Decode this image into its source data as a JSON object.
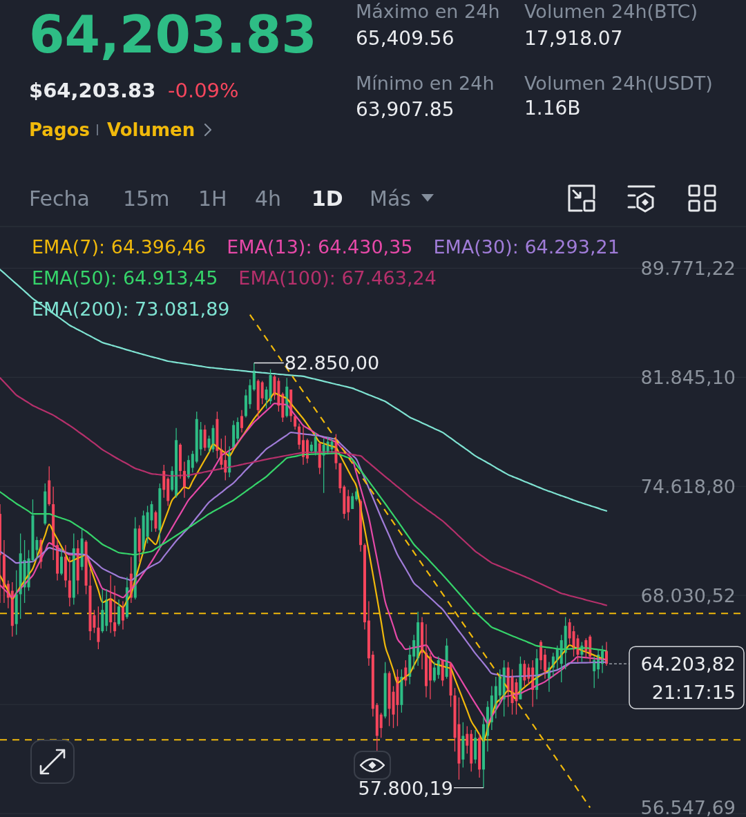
{
  "chart_data": {
    "type": "candlestick",
    "title": "64,203.83",
    "annotations": [
      "$64,203.83",
      "-0.09%",
      "Pagos",
      "Volumen",
      "Máximo en 24h",
      "65,409.56",
      "Mínimo en 24h",
      "63,907.85",
      "Volumen 24h(BTC)",
      "17,918.07",
      "Volumen 24h(USDT)",
      "1.16B",
      "Fecha",
      "15m",
      "1H",
      "4h",
      "1D",
      "Más",
      "82.850,00",
      "57.800,19",
      "21:17:15"
    ],
    "categories": [
      null,
      null,
      null,
      null,
      null,
      null,
      null,
      null,
      null,
      null,
      null,
      null,
      null,
      null,
      null,
      null,
      null,
      null,
      null,
      null,
      null,
      null,
      null,
      null,
      null,
      null,
      null,
      null,
      null,
      null,
      null,
      null,
      null,
      null,
      null,
      null,
      null,
      null,
      null,
      null,
      null,
      null,
      null,
      null,
      null,
      null,
      null,
      null,
      null,
      null,
      null,
      null,
      null,
      null,
      null,
      null,
      null,
      null,
      null,
      null,
      null,
      null,
      null,
      null,
      null,
      null,
      null,
      null,
      null,
      null,
      null,
      null,
      null,
      null,
      null,
      null,
      null,
      null,
      null,
      null,
      null,
      null,
      null,
      null,
      null,
      null,
      null,
      null,
      null,
      null,
      null,
      null,
      null,
      null,
      null,
      null,
      null,
      null,
      null,
      null,
      null,
      null,
      null,
      null,
      null,
      null,
      null,
      null,
      null,
      null,
      null,
      null,
      null,
      null,
      null,
      null,
      null,
      null,
      null,
      null,
      null,
      null,
      null,
      null,
      null,
      null,
      null,
      null,
      null,
      null,
      null,
      null,
      null,
      null,
      null,
      null,
      null,
      null,
      null,
      null,
      null,
      null,
      null,
      null,
      null,
      null,
      null,
      null,
      null
    ],
    "ohlc": [
      [
        72900,
        73500,
        67600,
        70400
      ],
      [
        70400,
        71300,
        67600,
        68500
      ],
      [
        68700,
        68900,
        67300,
        67900
      ],
      [
        68300,
        68800,
        65700,
        66300
      ],
      [
        66400,
        69500,
        65800,
        68100
      ],
      [
        68100,
        71700,
        66700,
        70500
      ],
      [
        68500,
        71300,
        67600,
        70100
      ],
      [
        68500,
        70700,
        68300,
        70200
      ],
      [
        70100,
        73800,
        70000,
        72800
      ],
      [
        70700,
        71500,
        70200,
        71300
      ],
      [
        71300,
        71400,
        69600,
        70000
      ],
      [
        72300,
        74800,
        72200,
        74300
      ],
      [
        75000,
        75900,
        73400,
        73500
      ],
      [
        73500,
        74600,
        70100,
        71000
      ],
      [
        71000,
        71300,
        68900,
        69300
      ],
      [
        69300,
        70800,
        69200,
        70300
      ],
      [
        70300,
        71000,
        68500,
        68900
      ],
      [
        68900,
        70300,
        67400,
        67900
      ],
      [
        67900,
        71700,
        67500,
        70800
      ],
      [
        70800,
        71300,
        68100,
        68900
      ],
      [
        69700,
        72000,
        69500,
        71400
      ],
      [
        71200,
        71300,
        68100,
        68600
      ],
      [
        68600,
        69600,
        65500,
        66000
      ],
      [
        66900,
        67200,
        65900,
        66200
      ],
      [
        66200,
        67400,
        65000,
        65400
      ],
      [
        66000,
        68400,
        65900,
        67200
      ],
      [
        66300,
        68400,
        66000,
        67800
      ],
      [
        67800,
        69200,
        65900,
        66500
      ],
      [
        66500,
        68600,
        65700,
        66000
      ],
      [
        66400,
        67800,
        66300,
        67400
      ],
      [
        67400,
        67700,
        66100,
        66600
      ],
      [
        66800,
        69100,
        66700,
        68500
      ],
      [
        69300,
        70300,
        67600,
        67900
      ],
      [
        67900,
        72700,
        67800,
        72000
      ],
      [
        72000,
        72200,
        70000,
        70600
      ],
      [
        70700,
        73100,
        70600,
        72800
      ],
      [
        71500,
        73400,
        71100,
        73000
      ],
      [
        72500,
        73700,
        71800,
        73500
      ],
      [
        73000,
        73100,
        71800,
        72000
      ],
      [
        71900,
        74800,
        70700,
        74500
      ],
      [
        75600,
        76000,
        73900,
        74400
      ],
      [
        75100,
        75200,
        73400,
        73700
      ],
      [
        74400,
        75900,
        74300,
        75600
      ],
      [
        74000,
        78400,
        73900,
        77600
      ],
      [
        77300,
        77400,
        75100,
        75600
      ],
      [
        75600,
        76200,
        73900,
        74500
      ],
      [
        75200,
        76600,
        75100,
        76300
      ],
      [
        75800,
        76900,
        75500,
        76700
      ],
      [
        76200,
        79500,
        76100,
        79000
      ],
      [
        77000,
        78800,
        76600,
        78300
      ],
      [
        78300,
        78600,
        76900,
        77100
      ],
      [
        77100,
        77900,
        76800,
        77700
      ],
      [
        77000,
        78600,
        76800,
        78400
      ],
      [
        79000,
        79500,
        76400,
        76900
      ],
      [
        77000,
        77700,
        75700,
        76000
      ],
      [
        76300,
        77900,
        75000,
        75500
      ],
      [
        75500,
        77200,
        75200,
        76800
      ],
      [
        77100,
        78900,
        77100,
        78600
      ],
      [
        77700,
        79100,
        77500,
        78800
      ],
      [
        79200,
        79600,
        78100,
        78400
      ],
      [
        79200,
        81000,
        79100,
        80600
      ],
      [
        80000,
        81700,
        79700,
        81300
      ],
      [
        81000,
        82850,
        80900,
        82300
      ],
      [
        81600,
        81700,
        79100,
        79600
      ],
      [
        81500,
        81600,
        80000,
        80400
      ],
      [
        80300,
        81200,
        79700,
        81000
      ],
      [
        80200,
        82400,
        80000,
        82000
      ],
      [
        81900,
        82000,
        80300,
        80600
      ],
      [
        81600,
        81800,
        79500,
        79900
      ],
      [
        80700,
        80800,
        78800,
        79100
      ],
      [
        79200,
        81800,
        79100,
        81200
      ],
      [
        81000,
        81000,
        78800,
        79200
      ],
      [
        79200,
        79200,
        78300,
        78500
      ],
      [
        78500,
        78700,
        77000,
        77300
      ],
      [
        77600,
        78500,
        76000,
        76500
      ],
      [
        77600,
        77700,
        76100,
        76400
      ],
      [
        76900,
        77500,
        76800,
        77300
      ],
      [
        76800,
        78100,
        76600,
        77800
      ],
      [
        77400,
        77400,
        75400,
        75800
      ],
      [
        76600,
        77700,
        74200,
        77300
      ],
      [
        76800,
        77800,
        76700,
        77500
      ],
      [
        77000,
        77700,
        76800,
        77500
      ],
      [
        77600,
        78000,
        75700,
        76100
      ],
      [
        76100,
        76100,
        74200,
        74500
      ],
      [
        74600,
        74700,
        72600,
        72900
      ],
      [
        74000,
        74400,
        72500,
        73000
      ],
      [
        73200,
        74200,
        73200,
        74000
      ],
      [
        73800,
        74500,
        73700,
        74300
      ],
      [
        73700,
        73800,
        70600,
        71000
      ],
      [
        71000,
        71100,
        66100,
        66500
      ],
      [
        66600,
        67700,
        64100,
        64500
      ],
      [
        64700,
        64900,
        61400,
        61800
      ],
      [
        62000,
        62100,
        59600,
        60400
      ],
      [
        61500,
        61600,
        60300,
        60800
      ],
      [
        61400,
        64300,
        61300,
        63700
      ],
      [
        63700,
        63800,
        60900,
        61800
      ],
      [
        62700,
        63000,
        60800,
        61500
      ],
      [
        63500,
        63900,
        60900,
        62000
      ],
      [
        62000,
        63900,
        61600,
        63500
      ],
      [
        64000,
        64400,
        63000,
        63300
      ],
      [
        63500,
        65200,
        63100,
        64700
      ],
      [
        64600,
        65800,
        63900,
        65500
      ],
      [
        64500,
        67100,
        64100,
        66500
      ],
      [
        66500,
        66800,
        63900,
        64800
      ],
      [
        64800,
        66400,
        62400,
        63000
      ],
      [
        64600,
        64800,
        62300,
        63300
      ],
      [
        63300,
        64300,
        63200,
        64000
      ],
      [
        63600,
        64600,
        63400,
        64400
      ],
      [
        64400,
        64400,
        63000,
        63300
      ],
      [
        63500,
        65600,
        63400,
        65200
      ],
      [
        64200,
        64300,
        61900,
        62500
      ],
      [
        62500,
        62900,
        59600,
        60300
      ],
      [
        61000,
        62400,
        58200,
        59000
      ],
      [
        59200,
        61100,
        58800,
        60400
      ],
      [
        60500,
        60900,
        59500,
        59900
      ],
      [
        60500,
        60700,
        58600,
        59000
      ],
      [
        59200,
        60700,
        59000,
        60300
      ],
      [
        60300,
        60500,
        58300,
        58700
      ],
      [
        58700,
        61400,
        57800.19,
        61000
      ],
      [
        60400,
        62200,
        59600,
        61900
      ],
      [
        61100,
        63000,
        60700,
        62500
      ],
      [
        61800,
        63500,
        61300,
        63000
      ],
      [
        62500,
        63900,
        62100,
        63600
      ],
      [
        62300,
        64400,
        61400,
        64000
      ],
      [
        64000,
        64300,
        61900,
        62700
      ],
      [
        63500,
        63900,
        61500,
        62100
      ],
      [
        63200,
        63400,
        61500,
        62200
      ],
      [
        62300,
        64600,
        62300,
        64200
      ],
      [
        64200,
        64400,
        63000,
        63300
      ],
      [
        64000,
        64200,
        63100,
        63400
      ],
      [
        64000,
        64400,
        61900,
        62800
      ],
      [
        62800,
        65000,
        62300,
        64500
      ],
      [
        65400,
        65500,
        63900,
        64400
      ],
      [
        64700,
        65000,
        63400,
        63800
      ],
      [
        63400,
        64300,
        62700,
        64000
      ],
      [
        64000,
        64800,
        63500,
        64600
      ],
      [
        64400,
        65200,
        63900,
        65000
      ],
      [
        64200,
        65800,
        63200,
        65500
      ],
      [
        64800,
        66800,
        63900,
        66300
      ],
      [
        66500,
        66700,
        65300,
        65600
      ],
      [
        66000,
        66300,
        64600,
        65000
      ],
      [
        65600,
        65800,
        64300,
        64700
      ],
      [
        64700,
        65400,
        64300,
        65200
      ],
      [
        65500,
        65600,
        64500,
        64900
      ],
      [
        65700,
        65800,
        64300,
        64600
      ],
      [
        63800,
        64600,
        62900,
        64400
      ],
      [
        63900,
        65000,
        63400,
        64700
      ],
      [
        64200,
        65200,
        63700,
        64900
      ],
      [
        64900,
        65400,
        64100,
        64203.82
      ]
    ],
    "series": [
      {
        "name": "EMA(7): 64.396,46",
        "type": "line",
        "color": "#f0b90b",
        "values": [
          69195,
          68740,
          68290,
          67832,
          68190,
          68540,
          68890,
          69250,
          69603,
          70270,
          70930,
          71590,
          72256,
          71810,
          71360,
          70910,
          70460,
          70010,
          70110,
          70210,
          70320,
          70418,
          69720,
          69030,
          68330,
          67634,
          67730,
          67832,
          67670,
          67520,
          67357,
          67730,
          68110,
          68950,
          69780,
          70620,
          71459,
          71250,
          71039,
          71720,
          72400,
          73070,
          73752,
          74030,
          74300,
          74575,
          74487,
          74950,
          75410,
          75870,
          76330,
          76793,
          77337,
          77150,
          76950,
          76760,
          76570,
          76980,
          77390,
          77800,
          78200,
          78610,
          79023,
          79370,
          79720,
          80070,
          80410,
          80759,
          80630,
          80510,
          80384,
          80040,
          79700,
          79360,
          79023,
          78640,
          78250,
          77860,
          77473,
          77380,
          77290,
          77200,
          77107,
          76610,
          76110,
          75610,
          75110,
          74615,
          73280,
          71950,
          70622,
          69260,
          67900,
          66550,
          65187,
          64510,
          63840,
          63162,
          63330,
          63510,
          63680,
          64110,
          64530,
          64957,
          64710,
          64460,
          64205,
          64140,
          64070,
          64010,
          63942,
          63390,
          62830,
          62270,
          61720,
          61160,
          60820,
          60470,
          60130,
          60770,
          61420,
          62062,
          62290,
          62520,
          62754,
          62660,
          62570,
          62750,
          62940,
          63120,
          63307,
          63450,
          63590,
          63730,
          63867,
          64140,
          64410,
          64680,
          64950,
          65225,
          65130,
          65040,
          64940,
          64847,
          64760,
          64670,
          64579,
          64490,
          64396.46
        ]
      },
      {
        "name": "EMA(13): 64.430,35",
        "type": "line",
        "color": "#e649a8",
        "values": [
          68630,
          68390,
          68150,
          67911,
          68170,
          68420,
          68680,
          68940,
          69195,
          69680,
          70160,
          70640,
          71127,
          70990,
          70840,
          70700,
          70560,
          70418,
          70420,
          70420,
          70420,
          70418,
          69920,
          69420,
          68930,
          68430,
          68330,
          68220,
          68120,
          68020,
          67911,
          68150,
          68390,
          68630,
          68970,
          69320,
          69660,
          70010,
          70410,
          70820,
          71220,
          71625,
          72050,
          72480,
          72900,
          73330,
          73752,
          74050,
          74350,
          74640,
          74940,
          75237,
          75680,
          76130,
          76570,
          76750,
          76930,
          77107,
          77440,
          77780,
          78120,
          78460,
          78793,
          79040,
          79300,
          79550,
          79800,
          80049,
          80020,
          79990,
          79956,
          79610,
          79260,
          78920,
          78569,
          78400,
          78230,
          78050,
          77881,
          77780,
          77680,
          77580,
          77473,
          77190,
          76910,
          76630,
          76346,
          75430,
          74510,
          73600,
          72678,
          71430,
          70180,
          68920,
          67673,
          66970,
          66270,
          65569,
          65280,
          64997,
          65040,
          65090,
          65130,
          65180,
          65225,
          64900,
          64579,
          64500,
          64410,
          64330,
          64243,
          63880,
          63520,
          63150,
          62790,
          62428,
          62080,
          61740,
          61400,
          61052,
          61400,
          61740,
          62080,
          62428,
          62470,
          62520,
          62570,
          62611,
          62720,
          62820,
          62920,
          63030,
          63130,
          63236,
          63390,
          63550,
          63710,
          63867,
          64040,
          64220,
          64400,
          64579,
          64560,
          64540,
          64520,
          64490,
          64470,
          64450,
          64430.35
        ]
      },
      {
        "name": "EMA(30): 64.293,21",
        "type": "line",
        "color": "#a07cd8",
        "values": [
          70622,
          70450,
          70280,
          70100,
          69930,
          69950,
          69970,
          69990,
          70010,
          70220,
          70420,
          70630,
          70834,
          70770,
          70700,
          70630,
          70570,
          70500,
          70480,
          70460,
          70440,
          70418,
          70210,
          70010,
          69810,
          69603,
          69480,
          69360,
          69240,
          69112,
          69040,
          68980,
          68910,
          69080,
          69260,
          69430,
          69603,
          69740,
          69870,
          70010,
          70320,
          70630,
          70940,
          71249,
          71510,
          71780,
          72044,
          72360,
          72680,
          72990,
          73310,
          73623,
          73830,
          74030,
          74230,
          74440,
          74640,
          74840,
          75110,
          75380,
          75660,
          75930,
          76200,
          76470,
          76750,
          77019,
          77200,
          77380,
          77570,
          77750,
          77930,
          78111,
          78080,
          78045,
          78010,
          77980,
          77950,
          77910,
          77881,
          77820,
          77770,
          77710,
          77656,
          77390,
          77130,
          76870,
          76610,
          76346,
          75730,
          75120,
          74510,
          73900,
          73290,
          72678,
          72110,
          71550,
          70980,
          70418,
          70000,
          69590,
          69170,
          68753,
          68540,
          68320,
          68100,
          67890,
          67670,
          67450,
          67239,
          66930,
          66620,
          66310,
          66000,
          65700,
          65390,
          65080,
          64770,
          64500,
          64230,
          63950,
          63681,
          63630,
          63590,
          63540,
          63495,
          63510,
          63520,
          63530,
          63540,
          63550,
          63560,
          63569,
          63630,
          63690,
          63750,
          63810,
          63867,
          63990,
          64120,
          64243,
          64250,
          64250,
          64260,
          64260,
          64270,
          64280,
          64280,
          64290,
          64293.21
        ]
      },
      {
        "name": "EMA(50): 64.913,45",
        "type": "line",
        "color": "#36d46a",
        "values": [
          74270,
          74090,
          73900,
          73720,
          73535,
          73380,
          73220,
          73060,
          72895,
          72895,
          72895,
          72895,
          72895,
          72810,
          72720,
          72640,
          72550,
          72468,
          72310,
          72150,
          71990,
          71834,
          71640,
          71440,
          71240,
          71039,
          70910,
          70790,
          70670,
          70541,
          70510,
          70480,
          70450,
          70418,
          70470,
          70520,
          70570,
          70622,
          70780,
          70940,
          71090,
          71249,
          71410,
          71570,
          71730,
          71890,
          72044,
          72210,
          72380,
          72550,
          72720,
          72895,
          73040,
          73180,
          73320,
          73470,
          73610,
          73752,
          73940,
          74120,
          74310,
          74490,
          74680,
          74870,
          75050,
          75237,
          75480,
          75720,
          75960,
          76190,
          76432,
          76490,
          76540,
          76600,
          76656,
          76670,
          76680,
          76690,
          76700,
          76710,
          76720,
          76730,
          76746,
          76650,
          76550,
          76450,
          76346,
          75990,
          75640,
          75290,
          74940,
          74590,
          74240,
          73890,
          73535,
          73180,
          72820,
          72470,
          72110,
          71750,
          71400,
          71039,
          70780,
          70520,
          70270,
          70010,
          69750,
          69490,
          69235,
          68970,
          68700,
          68430,
          68160,
          67890,
          67620,
          67350,
          67082,
          66870,
          66650,
          66440,
          66224,
          66130,
          66030,
          65930,
          65838,
          65740,
          65650,
          65560,
          65470,
          65370,
          65280,
          65187,
          65150,
          65120,
          65090,
          65060,
          65030,
          64997,
          65010,
          65020,
          65030,
          65050,
          65060,
          65073,
          65040,
          65010,
          64980,
          64950,
          64913.45
        ]
      },
      {
        "name": "EMA(100): 67.463,24",
        "type": "line",
        "color": "#b5306b",
        "values": [
          81807,
          81510,
          81210,
          80910,
          80617,
          80440,
          80260,
          80090,
          79910,
          79780,
          79650,
          79520,
          79390,
          79261,
          79090,
          78920,
          78740,
          78569,
          78380,
          78180,
          77990,
          77793,
          77590,
          77390,
          77180,
          76977,
          76820,
          76660,
          76500,
          76346,
          76200,
          76060,
          75910,
          75766,
          75680,
          75590,
          75500,
          75413,
          75390,
          75360,
          75340,
          75310,
          75283,
          75290,
          75310,
          75320,
          75327,
          75380,
          75430,
          75480,
          75540,
          75589,
          75640,
          75690,
          75740,
          75790,
          75850,
          75898,
          75950,
          76010,
          76070,
          76120,
          76180,
          76230,
          76290,
          76346,
          76400,
          76450,
          76500,
          76550,
          76600,
          76650,
          76700,
          76740,
          76793,
          76800,
          76800,
          76810,
          76810,
          76820,
          76830,
          76830,
          76837,
          76790,
          76750,
          76700,
          76660,
          76610,
          76570,
          76350,
          76130,
          75900,
          75680,
          75460,
          75237,
          75030,
          74810,
          74600,
          74390,
          74180,
          73960,
          73752,
          73570,
          73390,
          73200,
          73020,
          72840,
          72650,
          72468,
          72240,
          72010,
          71780,
          71540,
          71310,
          71080,
          70850,
          70622,
          70450,
          70280,
          70100,
          69930,
          69830,
          69730,
          69630,
          69530,
          69430,
          69330,
          69230,
          69130,
          69032,
          68920,
          68810,
          68700,
          68590,
          68480,
          68370,
          68260,
          68150,
          68090,
          68020,
          67960,
          67900,
          67840,
          67770,
          67710,
          67650,
          67590,
          67530,
          67463.24
        ]
      },
      {
        "name": "EMA(200): 73.081,89",
        "type": "line",
        "color": "#7fe3d2",
        "values": [
          89670,
          89400,
          89125,
          88850,
          88580,
          88310,
          88040,
          87760,
          87490,
          87270,
          87050,
          86840,
          86620,
          86400,
          86180,
          85970,
          85750,
          85530,
          85380,
          85220,
          85070,
          84910,
          84760,
          84600,
          84450,
          84290,
          84200,
          84120,
          84030,
          83950,
          83860,
          83770,
          83690,
          83600,
          83520,
          83440,
          83360,
          83280,
          83210,
          83130,
          83050,
          82970,
          82930,
          82880,
          82840,
          82790,
          82750,
          82710,
          82660,
          82620,
          82570,
          82530,
          82500,
          82470,
          82440,
          82410,
          82380,
          82360,
          82330,
          82300,
          82270,
          82240,
          82210,
          82190,
          82160,
          82140,
          82110,
          82090,
          82060,
          82040,
          82010,
          81990,
          81960,
          81940,
          81910,
          81840,
          81770,
          81710,
          81640,
          81570,
          81500,
          81430,
          81360,
          81300,
          81230,
          81160,
          81090,
          80980,
          80870,
          80750,
          80640,
          80530,
          80420,
          80300,
          80190,
          80010,
          79830,
          79660,
          79480,
          79300,
          79120,
          78990,
          78870,
          78740,
          78620,
          78490,
          78360,
          78240,
          78110,
          77920,
          77730,
          77530,
          77340,
          77150,
          76960,
          76760,
          76570,
          76420,
          76270,
          76120,
          75970,
          75810,
          75660,
          75510,
          75360,
          75250,
          75150,
          75040,
          74930,
          74830,
          74720,
          74610,
          74510,
          74400,
          74310,
          74220,
          74120,
          74030,
          73940,
          73850,
          73750,
          73660,
          73580,
          73490,
          73410,
          73330,
          73250,
          73160,
          73081.89
        ]
      },
      {
        "type": "line",
        "color": "#f0b90b",
        "line_style": "dashed",
        "values": [
          null,
          null,
          null,
          null,
          null,
          null,
          null,
          null,
          null,
          null,
          null,
          null,
          null,
          null,
          null,
          null,
          null,
          null,
          null,
          null,
          null,
          null,
          null,
          null,
          null,
          null,
          null,
          null,
          null,
          null,
          null,
          null,
          null,
          null,
          null,
          null,
          null,
          null,
          null,
          null,
          null,
          null,
          null,
          null,
          null,
          null,
          null,
          null,
          null,
          null,
          null,
          null,
          null,
          null,
          null,
          null,
          null,
          null,
          null,
          null,
          null,
          86300,
          85867,
          85436,
          85007,
          84581,
          84156,
          83734,
          83314,
          82896,
          82480,
          82066,
          81654,
          81244,
          80837,
          80431,
          80027,
          79626,
          79226,
          78829,
          78433,
          78039,
          77647,
          77258,
          76870,
          76484,
          76100,
          75718,
          75338,
          74960,
          74584,
          74210,
          73838,
          73467,
          73099,
          72732,
          72367,
          72004,
          71642,
          71283,
          70925,
          70569,
          70215,
          69862,
          69512,
          69163,
          68816,
          68470,
          68127,
          67785,
          67445,
          67106,
          66769,
          66434,
          66101,
          65769,
          65439,
          65110,
          64784,
          64459,
          64135,
          63813,
          63493,
          63174,
          62857,
          62542,
          62228,
          61916,
          61605,
          61296,
          60988,
          60682,
          60377,
          60074,
          59773,
          59473,
          59174,
          58877,
          58582,
          58288,
          57995,
          57704,
          57414,
          57126,
          56840,
          null,
          null,
          null,
          null
        ]
      }
    ],
    "log": true,
    "ylim": [
      56386,
      92890
    ],
    "yticks": [
      {
        "value": 89771.22,
        "label": "89.771,22"
      },
      {
        "value": 81845.1,
        "label": "81.845,10"
      },
      {
        "value": 74618.8,
        "label": "74.618,80"
      },
      {
        "value": 68030.52,
        "label": "68.030,52"
      },
      {
        "value": 62023.94,
        "label": null
      },
      {
        "value": 56547.69,
        "label": "56.547,69"
      }
    ],
    "grid": "y",
    "ref_lines": [
      {
        "axis": "y",
        "value": 67000,
        "color": "#f0b90b",
        "line_style": "dashed"
      },
      {
        "axis": "y",
        "value": 60200,
        "color": "#f0b90b",
        "line_style": "dashed"
      },
      {
        "axis": "y",
        "value": 64203.82,
        "label": "64.203,82",
        "color": "#aeb4bc",
        "line_style": "dashed"
      }
    ],
    "legend": "top"
  }
}
